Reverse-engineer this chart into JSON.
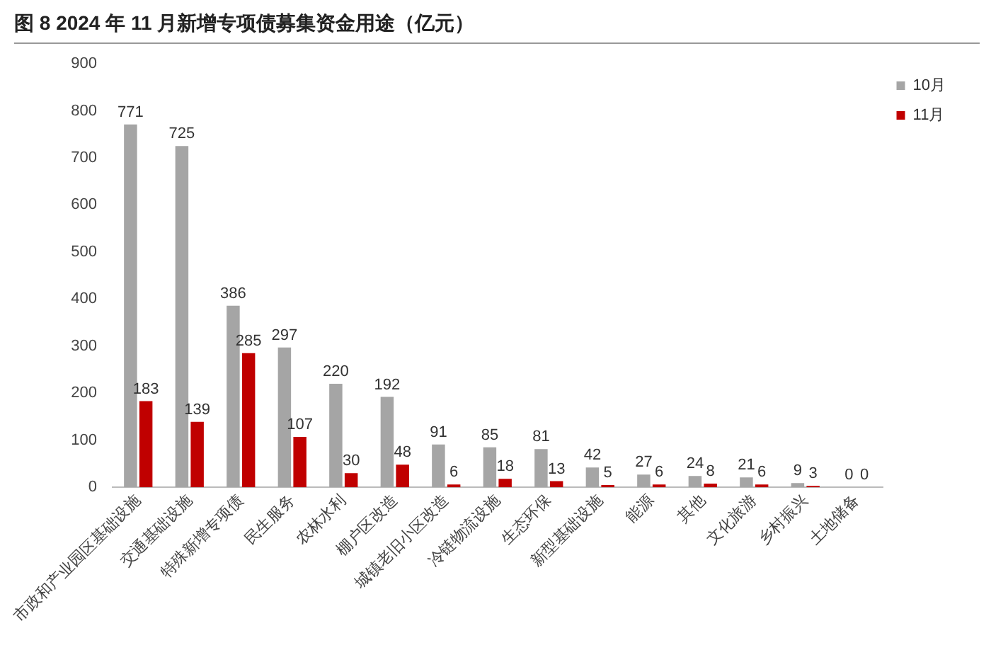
{
  "chart_data": {
    "type": "bar",
    "title": "图 8 2024 年 11 月新增专项债募集资金用途（亿元）",
    "categories": [
      "市政和产业园区基础设施",
      "交通基础设施",
      "特殊新增专项债",
      "民生服务",
      "农林水利",
      "棚户区改造",
      "城镇老旧小区改造",
      "冷链物流设施",
      "生态环保",
      "新型基础设施",
      "能源",
      "其他",
      "文化旅游",
      "乡村振兴",
      "土地储备"
    ],
    "series": [
      {
        "name": "10月",
        "color": "#a5a5a5",
        "values": [
          771,
          725,
          386,
          297,
          220,
          192,
          91,
          85,
          81,
          42,
          27,
          24,
          21,
          9,
          0
        ]
      },
      {
        "name": "11月",
        "color": "#c00000",
        "values": [
          183,
          139,
          285,
          107,
          30,
          48,
          6,
          18,
          13,
          5,
          6,
          8,
          6,
          3,
          0
        ]
      }
    ],
    "ylim": [
      0,
      900
    ],
    "yticks": [
      0,
      100,
      200,
      300,
      400,
      500,
      600,
      700,
      800,
      900
    ],
    "grid": false,
    "legend": "top right",
    "data_labels": true
  }
}
